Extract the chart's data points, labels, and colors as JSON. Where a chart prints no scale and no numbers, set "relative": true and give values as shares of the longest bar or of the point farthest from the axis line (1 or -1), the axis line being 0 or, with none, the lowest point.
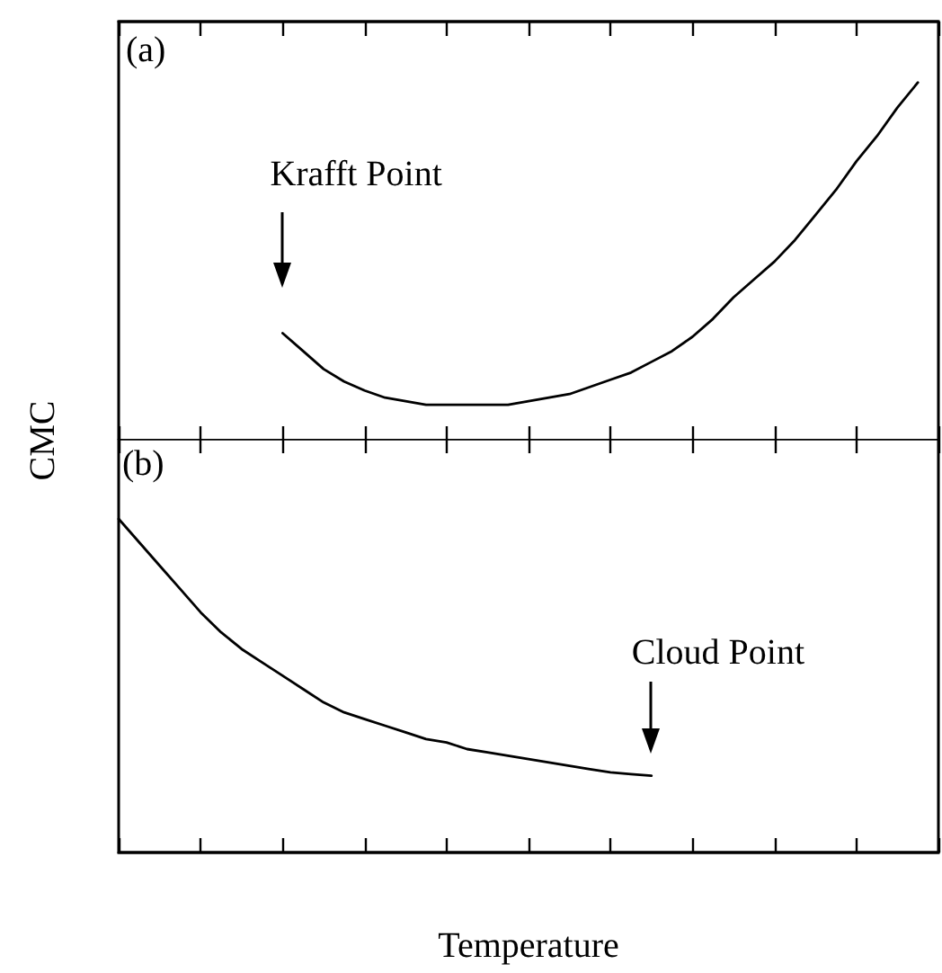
{
  "chart_data": [
    {
      "type": "line",
      "title": "(a)",
      "ylabel": "CMC",
      "relative": true,
      "tick_labels": false,
      "annotations": [
        "Krafft Point"
      ],
      "categories": [
        null,
        null,
        null,
        null,
        null,
        null,
        null,
        null,
        null,
        null,
        null,
        null,
        null,
        null,
        null,
        null,
        null,
        null,
        null,
        null,
        null,
        null,
        null,
        null,
        null,
        null,
        null,
        null,
        null,
        null,
        null,
        null,
        null,
        null,
        null,
        null,
        null,
        null,
        null,
        null,
        null
      ],
      "series": [
        {
          "color": "#000000",
          "values": [
            null,
            null,
            null,
            null,
            null,
            null,
            null,
            null,
            0.3,
            0.25,
            0.2,
            0.165,
            0.14,
            0.12,
            0.11,
            0.1,
            0.1,
            0.1,
            0.1,
            0.1,
            0.11,
            0.12,
            0.13,
            0.15,
            0.17,
            0.19,
            0.22,
            0.25,
            0.29,
            0.34,
            0.4,
            0.45,
            0.5,
            0.56,
            0.63,
            0.7,
            0.78,
            0.85,
            0.93,
            1,
            null
          ]
        }
      ]
    },
    {
      "type": "line",
      "title": "(b)",
      "xlabel": "Temperature",
      "relative": true,
      "tick_labels": false,
      "annotations": [
        "Cloud Point"
      ],
      "categories": [
        null,
        null,
        null,
        null,
        null,
        null,
        null,
        null,
        null,
        null,
        null,
        null,
        null,
        null,
        null,
        null,
        null,
        null,
        null,
        null,
        null,
        null,
        null,
        null,
        null,
        null,
        null,
        null,
        null,
        null,
        null,
        null,
        null,
        null,
        null,
        null,
        null,
        null,
        null,
        null,
        null
      ],
      "series": [
        {
          "color": "#000000",
          "values": [
            1,
            0.93,
            0.86,
            0.79,
            0.72,
            0.66,
            0.61,
            0.57,
            0.53,
            0.49,
            0.45,
            0.42,
            0.4,
            0.38,
            0.36,
            0.34,
            0.33,
            0.31,
            0.3,
            0.29,
            0.28,
            0.27,
            0.26,
            0.25,
            0.24,
            0.235,
            0.23,
            null,
            null,
            null,
            null,
            null,
            null,
            null,
            null,
            null,
            null,
            null,
            null,
            null,
            null
          ]
        }
      ]
    }
  ]
}
